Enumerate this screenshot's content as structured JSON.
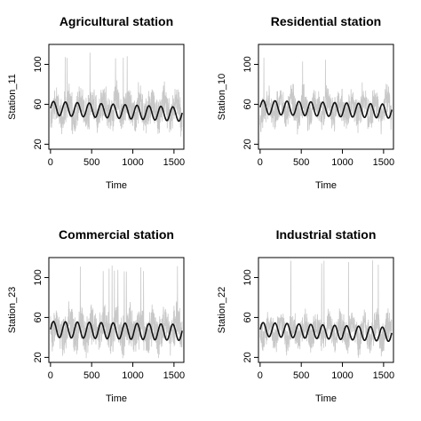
{
  "chart_data": [
    {
      "type": "line",
      "title": "Agricultural station",
      "xlabel": "Time",
      "ylabel": "Station_11",
      "xlim": [
        -20,
        1620
      ],
      "ylim": [
        15,
        120
      ],
      "xticks": [
        0,
        500,
        1000,
        1500
      ],
      "yticks": [
        20,
        60,
        100
      ],
      "grid": false,
      "series": [
        {
          "role": "observed",
          "color": "#c8c8c8",
          "n": 1600,
          "mean": 55,
          "amplitude": 8,
          "noise": 14,
          "min": 20,
          "max": 112,
          "seed": 11
        },
        {
          "role": "seasonal-fit",
          "color": "#111111",
          "n": 1600,
          "mean": 56,
          "amplitude": 7,
          "period": 145,
          "trend": -6
        }
      ]
    },
    {
      "type": "line",
      "title": "Residential station",
      "xlabel": "Time",
      "ylabel": "Station_10",
      "xlim": [
        -20,
        1620
      ],
      "ylim": [
        15,
        120
      ],
      "xticks": [
        0,
        500,
        1000,
        1500
      ],
      "yticks": [
        20,
        60,
        100
      ],
      "grid": false,
      "series": [
        {
          "role": "observed",
          "color": "#c8c8c8",
          "n": 1600,
          "mean": 56,
          "amplitude": 8,
          "noise": 13,
          "min": 22,
          "max": 108,
          "seed": 10
        },
        {
          "role": "seasonal-fit",
          "color": "#111111",
          "n": 1600,
          "mean": 57,
          "amplitude": 7,
          "period": 145,
          "trend": -4
        }
      ]
    },
    {
      "type": "line",
      "title": "Commercial station",
      "xlabel": "Time",
      "ylabel": "Station_23",
      "xlim": [
        -20,
        1620
      ],
      "ylim": [
        15,
        120
      ],
      "xticks": [
        0,
        500,
        1000,
        1500
      ],
      "yticks": [
        20,
        60,
        100
      ],
      "grid": false,
      "series": [
        {
          "role": "observed",
          "color": "#c8c8c8",
          "n": 1600,
          "mean": 48,
          "amplitude": 8,
          "noise": 16,
          "min": 18,
          "max": 112,
          "seed": 23
        },
        {
          "role": "seasonal-fit",
          "color": "#111111",
          "n": 1600,
          "mean": 48,
          "amplitude": 8,
          "period": 145,
          "trend": -3
        }
      ]
    },
    {
      "type": "line",
      "title": "Industrial station",
      "xlabel": "Time",
      "ylabel": "Station_22",
      "xlim": [
        -20,
        1620
      ],
      "ylim": [
        15,
        120
      ],
      "xticks": [
        0,
        500,
        1000,
        1500
      ],
      "yticks": [
        20,
        60,
        100
      ],
      "grid": false,
      "series": [
        {
          "role": "observed",
          "color": "#c8c8c8",
          "n": 1600,
          "mean": 46,
          "amplitude": 8,
          "noise": 12,
          "min": 18,
          "max": 118,
          "seed": 22
        },
        {
          "role": "seasonal-fit",
          "color": "#111111",
          "n": 1600,
          "mean": 48,
          "amplitude": 7,
          "period": 145,
          "trend": -5
        }
      ]
    }
  ]
}
